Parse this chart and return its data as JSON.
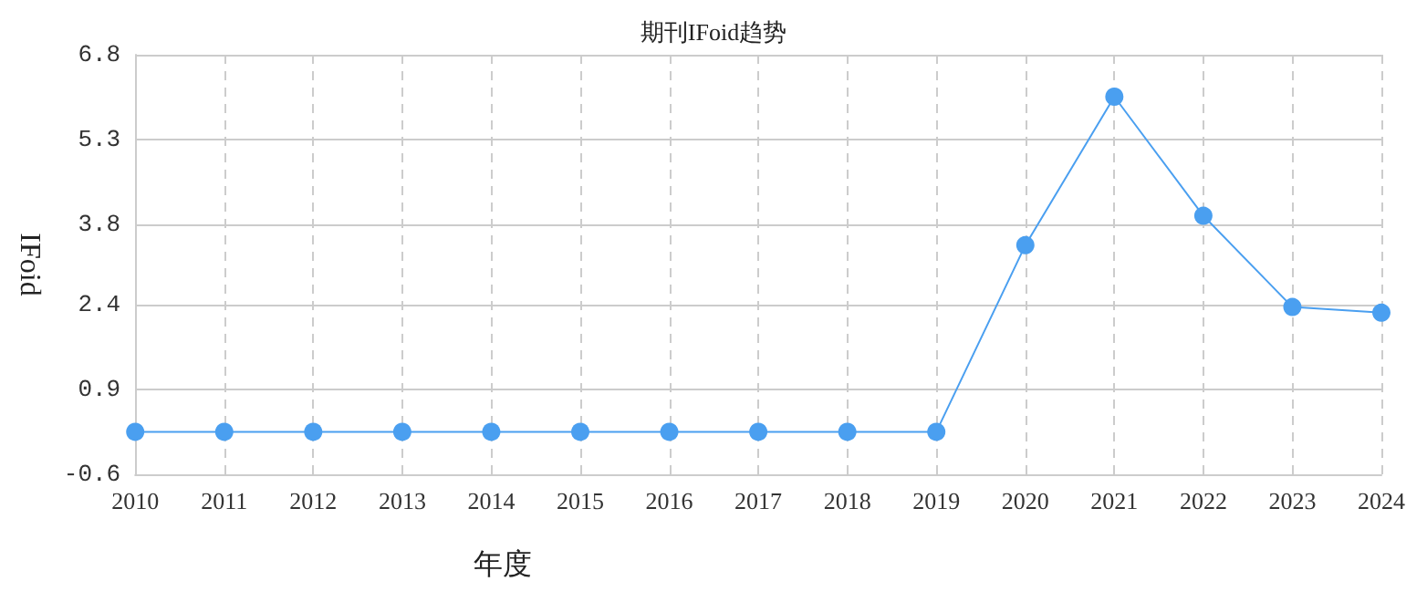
{
  "chart_data": {
    "type": "line",
    "title": "期刊IFoid趋势",
    "xlabel": "年度",
    "ylabel": "IFoid",
    "categories": [
      "2010",
      "2011",
      "2012",
      "2013",
      "2014",
      "2015",
      "2016",
      "2017",
      "2018",
      "2019",
      "2020",
      "2021",
      "2022",
      "2023",
      "2024"
    ],
    "series": [
      {
        "color": "#4a9ff0",
        "values": [
          0.15,
          0.15,
          0.15,
          0.15,
          0.15,
          0.15,
          0.15,
          0.15,
          0.15,
          0.15,
          3.44,
          6.06,
          3.96,
          2.35,
          2.25
        ]
      }
    ],
    "ylim": [
      -0.6,
      6.8
    ],
    "yticks": [
      -0.6,
      0.9,
      2.4,
      3.8,
      5.3,
      6.8
    ],
    "grid": true,
    "marker": "circle",
    "line_style": "solid"
  }
}
